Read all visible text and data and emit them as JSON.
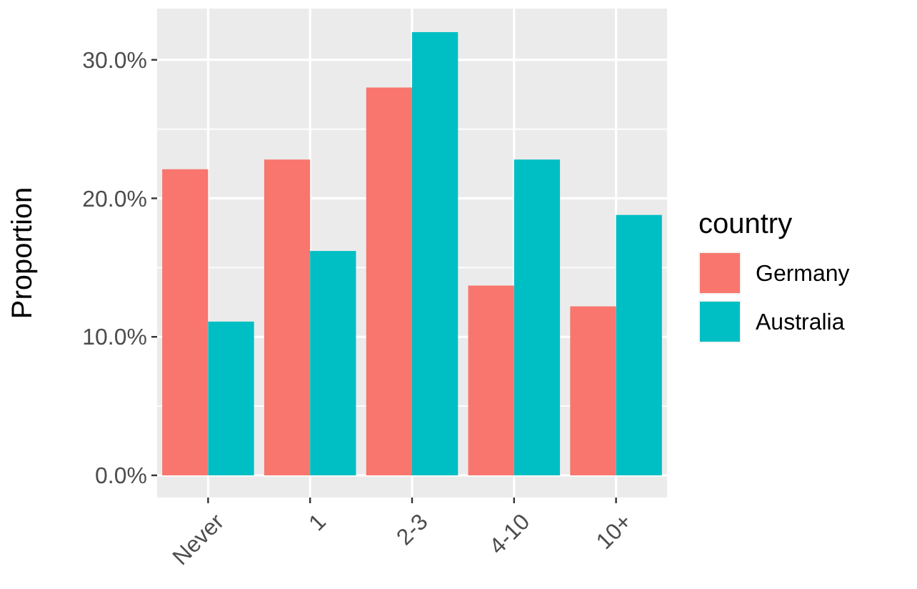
{
  "chart_data": {
    "type": "bar",
    "ylabel": "Proportion",
    "legend_title": "country",
    "categories": [
      "Never",
      "1",
      "2-3",
      "4-10",
      "10+"
    ],
    "series": [
      {
        "name": "Germany",
        "color": "#f8766d",
        "values": [
          0.221,
          0.228,
          0.28,
          0.137,
          0.122
        ]
      },
      {
        "name": "Australia",
        "color": "#00bfc4",
        "values": [
          0.111,
          0.162,
          0.32,
          0.228,
          0.188
        ]
      }
    ],
    "ylim": [
      -0.016,
      0.337
    ],
    "yticks": [
      {
        "value": 0,
        "label": "0.0%"
      },
      {
        "value": 0.1,
        "label": "10.0%"
      },
      {
        "value": 0.2,
        "label": "20.0%"
      },
      {
        "value": 0.3,
        "label": "30.0%"
      }
    ],
    "grid": true,
    "legend": "right"
  }
}
